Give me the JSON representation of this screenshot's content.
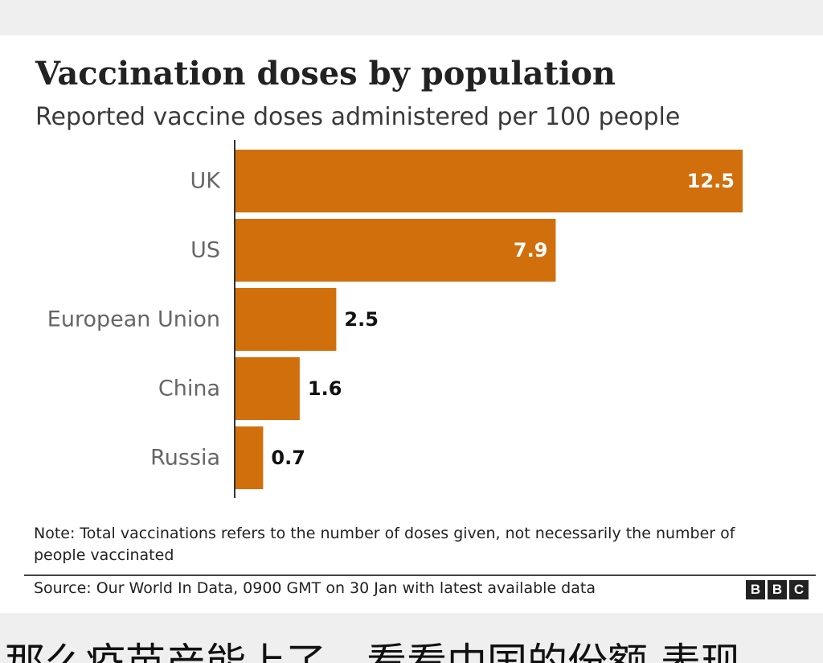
{
  "colors": {
    "bar": "#d06f0c",
    "label_inside": "#ffffff",
    "label_outside": "#111111",
    "category": "#666666"
  },
  "chart_data": {
    "type": "bar",
    "orientation": "horizontal",
    "title": "Vaccination doses by population",
    "subtitle": "Reported vaccine doses administered per 100 people",
    "categories": [
      "UK",
      "US",
      "European Union",
      "China",
      "Russia"
    ],
    "values": [
      12.5,
      7.9,
      2.5,
      1.6,
      0.7
    ],
    "value_labels": [
      "12.5",
      "7.9",
      "2.5",
      "1.6",
      "0.7"
    ],
    "xlim": [
      0,
      12.5
    ],
    "xlabel": "",
    "ylabel": "",
    "grid": false,
    "legend": "none"
  },
  "note": "Note: Total vaccinations refers to the number of doses given, not necessarily the number of people vaccinated",
  "source": "Source: Our World In Data, 0900 GMT on 30 Jan with latest available data",
  "logo": {
    "letters": [
      "B",
      "B",
      "C"
    ]
  },
  "caption": "那么疫苗产能上了，看看中国的份额 表现"
}
